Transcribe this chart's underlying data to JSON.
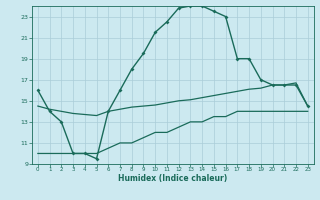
{
  "title": "",
  "xlabel": "Humidex (Indice chaleur)",
  "bg_color": "#cce9f0",
  "grid_color": "#aacdd8",
  "line_color": "#1a6b5a",
  "xlim": [
    -0.5,
    23.5
  ],
  "ylim": [
    9,
    24
  ],
  "xticks": [
    0,
    1,
    2,
    3,
    4,
    5,
    6,
    7,
    8,
    9,
    10,
    11,
    12,
    13,
    14,
    15,
    16,
    17,
    18,
    19,
    20,
    21,
    22,
    23
  ],
  "yticks": [
    9,
    11,
    13,
    15,
    17,
    19,
    21,
    23
  ],
  "curve1_x": [
    0,
    1,
    2,
    3,
    4,
    5,
    6,
    7,
    8,
    9,
    10,
    11,
    12,
    13,
    14,
    15,
    16,
    17,
    18,
    19,
    20,
    21,
    22,
    23
  ],
  "curve1_y": [
    16,
    14,
    13,
    10,
    10,
    9.5,
    14,
    16,
    18,
    19.5,
    21.5,
    22.5,
    23.8,
    24,
    24,
    23.5,
    23,
    19,
    19,
    17,
    16.5,
    16.5,
    16.5,
    14.5
  ],
  "curve2_x": [
    0,
    1,
    2,
    3,
    4,
    5,
    6,
    7,
    8,
    9,
    10,
    11,
    12,
    13,
    14,
    15,
    16,
    17,
    18,
    19,
    20,
    21,
    22,
    23
  ],
  "curve2_y": [
    14.5,
    14.2,
    14.0,
    13.8,
    13.7,
    13.6,
    14.0,
    14.2,
    14.4,
    14.5,
    14.6,
    14.8,
    15.0,
    15.1,
    15.3,
    15.5,
    15.7,
    15.9,
    16.1,
    16.2,
    16.5,
    16.5,
    16.7,
    14.5
  ],
  "curve3_x": [
    0,
    1,
    2,
    3,
    4,
    5,
    6,
    7,
    8,
    9,
    10,
    11,
    12,
    13,
    14,
    15,
    16,
    17,
    18,
    19,
    20,
    21,
    22,
    23
  ],
  "curve3_y": [
    10,
    10,
    10,
    10,
    10,
    10,
    10.5,
    11,
    11,
    11.5,
    12,
    12,
    12.5,
    13,
    13,
    13.5,
    13.5,
    14,
    14,
    14,
    14,
    14,
    14,
    14
  ]
}
